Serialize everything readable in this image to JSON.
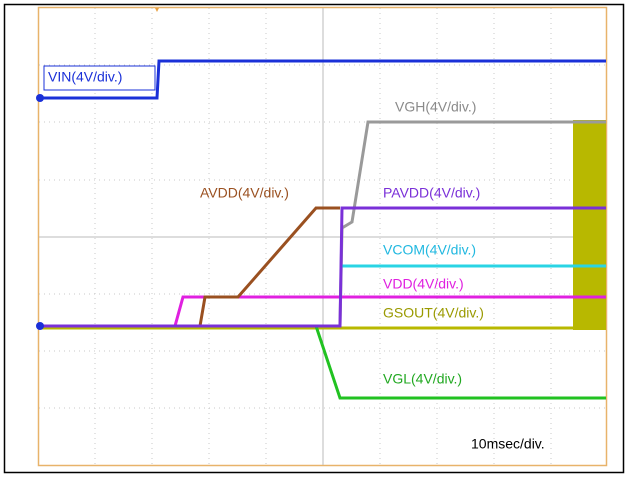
{
  "labels": {
    "vin": "VIN(4V/div.)",
    "vgh": "VGH(4V/div.)",
    "avdd": "AVDD(4V/div.)",
    "pavdd": "PAVDD(4V/div.)",
    "vcom": "VCOM(4V/div.)",
    "vdd": "VDD(4V/div.)",
    "gsout": "GSOUT(4V/div.)",
    "vgl": "VGL(4V/div.)"
  },
  "timebase": "10msec/div."
}
